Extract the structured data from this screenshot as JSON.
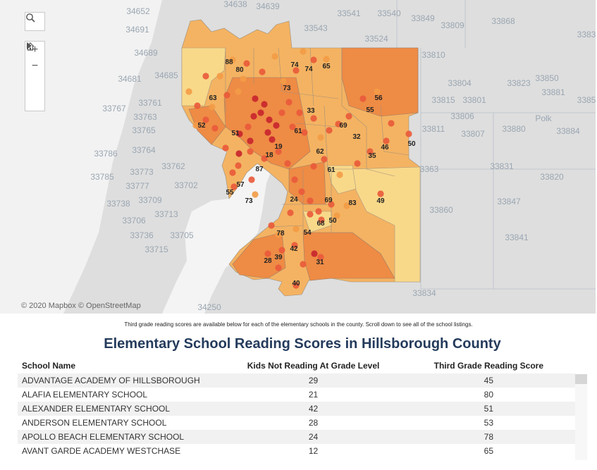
{
  "map": {
    "attribution": "© 2020 Mapbox © OpenStreetMap",
    "controls": {
      "search": "search-icon",
      "zoom_in": "+",
      "zoom_out": "−",
      "home": "home-icon",
      "play": "play-icon"
    },
    "background_labels": [
      "34652",
      "34638",
      "34639",
      "33541",
      "33540",
      "33849",
      "33809",
      "33868",
      "3383",
      "34691",
      "33543",
      "33524",
      "34689",
      "33810",
      "34685",
      "34681",
      "33804",
      "33823",
      "33850",
      "33881",
      "33767",
      "33761",
      "33815",
      "33801",
      "3385",
      "33763",
      "33806",
      "Polk",
      "33765",
      "33811",
      "33807",
      "33880",
      "33884",
      "33786",
      "33764",
      "33762",
      "33773",
      "3363",
      "33831",
      "33820",
      "33785",
      "33777",
      "33702",
      "33738",
      "33709",
      "33847",
      "33713",
      "33860",
      "33706",
      "33705",
      "33736",
      "33841",
      "33715",
      "33834",
      "34250"
    ],
    "region_labels": [
      "88",
      "80",
      "74",
      "74",
      "65",
      "73",
      "63",
      "56",
      "55",
      "52",
      "33",
      "69",
      "51",
      "61",
      "32",
      "46",
      "50",
      "18",
      "19",
      "62",
      "35",
      "87",
      "61",
      "57",
      "55",
      "73",
      "49",
      "24",
      "69",
      "83",
      "68",
      "50",
      "78",
      "54",
      "42",
      "39",
      "28",
      "31",
      "40"
    ],
    "colors": {
      "light": "#f8d98a",
      "mid": "#f4b15e",
      "dark": "#ee8b45",
      "dot_light": "#f39b46",
      "dot_mid": "#e9593a",
      "dot_dark": "#c8232c",
      "water": "#ffffff",
      "land": "#dcdcdc"
    }
  },
  "note": "Third grade reading scores are available below for each of the elementary schools in the county. Scroll down to see all of the school listings.",
  "title": "Elementary School Reading Scores in Hillsborough County",
  "table": {
    "headers": [
      "School Name",
      "Kids Not Reading At Grade Level",
      "Third Grade Reading Score"
    ],
    "rows": [
      {
        "name": "ADVANTAGE ACADEMY OF HILLSBOROUGH",
        "not_reading": "29",
        "score": "45"
      },
      {
        "name": "ALAFIA ELEMENTARY SCHOOL",
        "not_reading": "21",
        "score": "80"
      },
      {
        "name": "ALEXANDER ELEMENTARY SCHOOL",
        "not_reading": "42",
        "score": "51"
      },
      {
        "name": "ANDERSON ELEMENTARY SCHOOL",
        "not_reading": "28",
        "score": "53"
      },
      {
        "name": "APOLLO BEACH ELEMENTARY SCHOOL",
        "not_reading": "24",
        "score": "78"
      },
      {
        "name": "AVANT GARDE ACADEMY WESTCHASE",
        "not_reading": "12",
        "score": "65"
      }
    ]
  }
}
